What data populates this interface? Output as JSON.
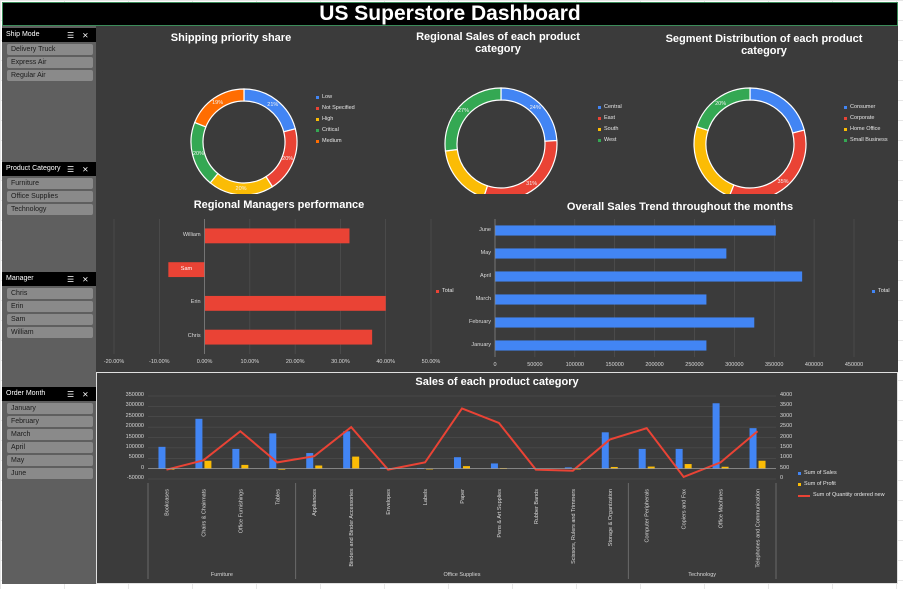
{
  "title": "US Superstore Dashboard",
  "slicers": [
    {
      "header": "Ship Mode",
      "items": [
        "Delivery Truck",
        "Express Air",
        "Regular Air"
      ]
    },
    {
      "header": "Product Category",
      "items": [
        "Furniture",
        "Office Supplies",
        "Technology"
      ]
    },
    {
      "header": "Manager",
      "items": [
        "Chris",
        "Erin",
        "Sam",
        "William"
      ]
    },
    {
      "header": "Order Month",
      "items": [
        "January",
        "February",
        "March",
        "April",
        "May",
        "June"
      ]
    }
  ],
  "icons": {
    "multiselect": "multiselect-icon",
    "clear_filter": "clear-filter-icon"
  },
  "colors": {
    "blue": "#4285f4",
    "red": "#ea4335",
    "yellow": "#fbbc05",
    "green": "#34a853",
    "orange": "#ff6d01"
  },
  "chart_data": [
    {
      "type": "pie",
      "title": "Shipping priority share",
      "labels": [
        "Low",
        "Not Specified",
        "High",
        "Critical",
        "Medium"
      ],
      "values": [
        21,
        20,
        20,
        20,
        19
      ],
      "value_labels": [
        "21%",
        "20%",
        "20%",
        "20%",
        "19%"
      ],
      "colors": [
        "#4285f4",
        "#ea4335",
        "#fbbc05",
        "#34a853",
        "#ff6d01"
      ],
      "legend": "right"
    },
    {
      "type": "pie",
      "title": "Regional Sales of each product category",
      "labels": [
        "Central",
        "East",
        "South",
        "West"
      ],
      "values": [
        24,
        31,
        18,
        27
      ],
      "value_labels": [
        "24%",
        "31%",
        "",
        "27%"
      ],
      "colors": [
        "#4285f4",
        "#ea4335",
        "#fbbc05",
        "#34a853"
      ],
      "legend": "right"
    },
    {
      "type": "pie",
      "title": "Segment Distribution of each product category",
      "labels": [
        "Consumer",
        "Corporate",
        "Home Office",
        "Small Business"
      ],
      "values": [
        21,
        35,
        24,
        20
      ],
      "value_labels": [
        "",
        "35%",
        "",
        "20%"
      ],
      "colors": [
        "#4285f4",
        "#ea4335",
        "#fbbc05",
        "#34a853"
      ],
      "legend": "right"
    },
    {
      "type": "bar",
      "orientation": "horizontal",
      "title": "Regional Managers performance",
      "categories": [
        "William",
        "Sam",
        "Erin",
        "Chris"
      ],
      "values": [
        0.32,
        -0.08,
        0.4,
        0.37
      ],
      "xlim": [
        -0.2,
        0.5
      ],
      "tick_labels": [
        "-20.00%",
        "-10.00%",
        "0.00%",
        "10.00%",
        "20.00%",
        "30.00%",
        "40.00%",
        "50.00%"
      ],
      "series": [
        {
          "name": "Total",
          "color": "#ea4335"
        }
      ],
      "legend": "right"
    },
    {
      "type": "bar",
      "orientation": "horizontal",
      "title": "Overall Sales Trend throughout the months",
      "categories": [
        "June",
        "May",
        "April",
        "March",
        "February",
        "January"
      ],
      "values": [
        352000,
        290000,
        385000,
        265000,
        325000,
        265000
      ],
      "xlim": [
        0,
        450000
      ],
      "tick_labels": [
        "0",
        "50000",
        "100000",
        "150000",
        "200000",
        "250000",
        "300000",
        "350000",
        "400000",
        "450000"
      ],
      "series": [
        {
          "name": "Total",
          "color": "#4285f4"
        }
      ],
      "legend": "right"
    },
    {
      "type": "bar",
      "title": "Sales of each product category",
      "categories": [
        "Bookcases",
        "Chairs & Chairmats",
        "Office Furnishings",
        "Tables",
        "Appliances",
        "Binders and Binder Accessories",
        "Envelopes",
        "Labels",
        "Paper",
        "Pens & Art Supplies",
        "Rubber Bands",
        "Scissors, Rulers and Trimmers",
        "Storage & Organization",
        "Computer Peripherals",
        "Copiers and Fax",
        "Office Machines",
        "Telephones and Communication"
      ],
      "groups": [
        {
          "name": "Furniture",
          "count": 4
        },
        {
          "name": "Office Supplies",
          "count": 9
        },
        {
          "name": "Technology",
          "count": 4
        }
      ],
      "series": [
        {
          "name": "Sum of Sales",
          "axis": "left",
          "color": "#4285f4",
          "values": [
            105000,
            240000,
            95000,
            170000,
            75000,
            180000,
            5000,
            3000,
            55000,
            25000,
            2000,
            6000,
            175000,
            95000,
            95000,
            315000,
            195000
          ]
        },
        {
          "name": "Sum of Profit",
          "axis": "left",
          "color": "#fbbc05",
          "values": [
            -4000,
            38000,
            18000,
            -4000,
            15000,
            58000,
            3000,
            1000,
            12000,
            3000,
            200,
            1000,
            8000,
            10000,
            22000,
            9000,
            38000
          ]
        },
        {
          "name": "Sum of Quantity ordered new",
          "axis": "right",
          "type": "line",
          "color": "#ea4335",
          "values": [
            450,
            900,
            2300,
            800,
            1100,
            2500,
            450,
            800,
            3400,
            2700,
            450,
            400,
            1900,
            2450,
            100,
            800,
            2300
          ]
        }
      ],
      "ylim_left": [
        -50000,
        350000
      ],
      "ylim_right": [
        0,
        4000
      ],
      "left_tick_labels": [
        "-50000",
        "0",
        "50000",
        "100000",
        "150000",
        "200000",
        "250000",
        "300000",
        "350000"
      ],
      "right_tick_labels": [
        "0",
        "500",
        "1000",
        "1500",
        "2000",
        "2500",
        "3000",
        "3500",
        "4000"
      ],
      "legend": "right"
    }
  ]
}
